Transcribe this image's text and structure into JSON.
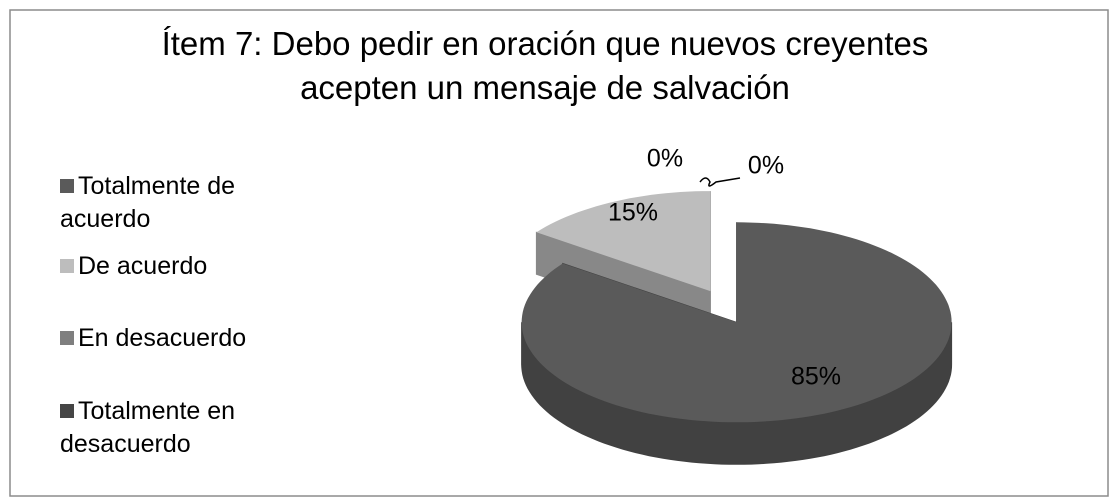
{
  "chart_data": {
    "type": "pie",
    "title": "Ítem 7: Debo pedir en oración que nuevos creyentes acepten un mensaje de salvación",
    "categories": [
      "Totalmente de acuerdo",
      "De acuerdo",
      "En desacuerdo",
      "Totalmente en desacuerdo"
    ],
    "values": [
      85,
      15,
      0,
      0
    ],
    "value_labels": [
      "85%",
      "15%",
      "0%",
      "0%"
    ],
    "colors": [
      "#5a5a5a",
      "#bdbdbd",
      "#7f7f7f",
      "#454545"
    ],
    "legend": "left"
  }
}
